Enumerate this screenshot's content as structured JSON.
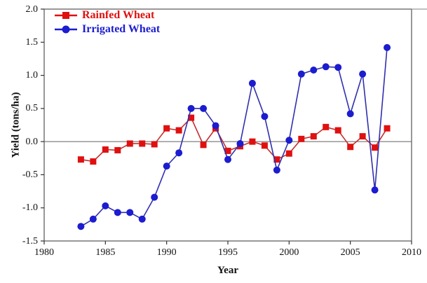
{
  "chart_data": {
    "type": "line",
    "title": "",
    "xlabel": "Year",
    "ylabel": "Yield (tons/ha)",
    "xlim": [
      1980,
      2010
    ],
    "ylim": [
      -1.5,
      2.0
    ],
    "x_ticks": [
      "1980",
      "1985",
      "1990",
      "1995",
      "2000",
      "2005",
      "2010"
    ],
    "y_ticks": [
      "2.0",
      "1.5",
      "1.0",
      "0.5",
      "0.0",
      "-0.5",
      "-1.0",
      "-1.5"
    ],
    "grid": false,
    "zero_line": true,
    "legend_position": "top-left-inside",
    "x": [
      1983,
      1984,
      1985,
      1986,
      1987,
      1988,
      1989,
      1990,
      1991,
      1992,
      1993,
      1994,
      1995,
      1996,
      1997,
      1998,
      1999,
      2000,
      2001,
      2002,
      2003,
      2004,
      2005,
      2006,
      2007,
      2008
    ],
    "series": [
      {
        "name": "Rainfed Wheat",
        "marker": "square",
        "color": "#e01010",
        "line_color": "#c23030",
        "values": [
          -0.27,
          -0.3,
          -0.12,
          -0.13,
          -0.03,
          -0.03,
          -0.04,
          0.2,
          0.17,
          0.36,
          -0.05,
          0.2,
          -0.14,
          -0.07,
          0.0,
          -0.06,
          -0.27,
          -0.18,
          0.04,
          0.08,
          0.22,
          0.17,
          -0.08,
          0.08,
          -0.09,
          0.2
        ]
      },
      {
        "name": "Irrigated Wheat",
        "marker": "circle",
        "color": "#1c1cd0",
        "line_color": "#3030ae",
        "values": [
          -1.28,
          -1.17,
          -0.97,
          -1.07,
          -1.07,
          -1.17,
          -0.84,
          -0.37,
          -0.17,
          0.5,
          0.5,
          0.24,
          -0.27,
          -0.03,
          0.88,
          0.38,
          -0.43,
          0.02,
          1.02,
          1.08,
          1.13,
          1.12,
          0.42,
          1.02,
          -0.73,
          1.42
        ]
      }
    ],
    "colors": {
      "frame": "#606060",
      "zero_line": "#606060",
      "tick": "#333333",
      "text": "#111111"
    }
  }
}
